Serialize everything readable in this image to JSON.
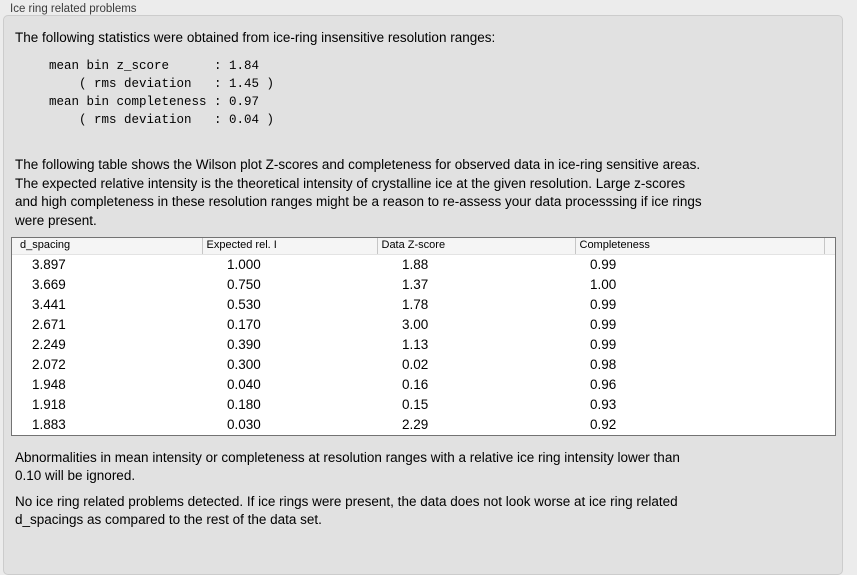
{
  "panel": {
    "title": "Ice ring related problems"
  },
  "intro": "The following statistics were obtained from ice-ring insensitive resolution ranges:",
  "stats_block": {
    "lines": [
      "mean bin z_score      : 1.84",
      "    ( rms deviation   : 1.45 )",
      "mean bin completeness : 0.97",
      "    ( rms deviation   : 0.04 )"
    ]
  },
  "description": {
    "lines": [
      "The following table shows the Wilson plot Z-scores and completeness for observed data in ice-ring sensitive areas.",
      "The expected relative intensity is the theoretical intensity of crystalline ice at the given resolution. Large z-scores",
      "and high completeness in these resolution ranges might be a reason to re-assess your data processsing if ice rings",
      "were present."
    ]
  },
  "table": {
    "columns": [
      "d_spacing",
      "Expected rel. I",
      "Data Z-score",
      "Completeness"
    ],
    "rows": [
      [
        "3.897",
        "1.000",
        "1.88",
        "0.99"
      ],
      [
        "3.669",
        "0.750",
        "1.37",
        "1.00"
      ],
      [
        "3.441",
        "0.530",
        "1.78",
        "0.99"
      ],
      [
        "2.671",
        "0.170",
        "3.00",
        "0.99"
      ],
      [
        "2.249",
        "0.390",
        "1.13",
        "0.99"
      ],
      [
        "2.072",
        "0.300",
        "0.02",
        "0.98"
      ],
      [
        "1.948",
        "0.040",
        "0.16",
        "0.96"
      ],
      [
        "1.918",
        "0.180",
        "0.15",
        "0.93"
      ],
      [
        "1.883",
        "0.030",
        "2.29",
        "0.92"
      ]
    ]
  },
  "notes": {
    "ignore_note": {
      "lines": [
        "Abnormalities in mean intensity or completeness at resolution ranges with a relative ice ring intensity lower than",
        "0.10 will be ignored."
      ]
    },
    "conclusion": {
      "lines": [
        "No ice ring related problems detected. If ice rings were present, the data does not look worse at ice ring related",
        "d_spacings as compared to the rest of the data set."
      ]
    }
  }
}
